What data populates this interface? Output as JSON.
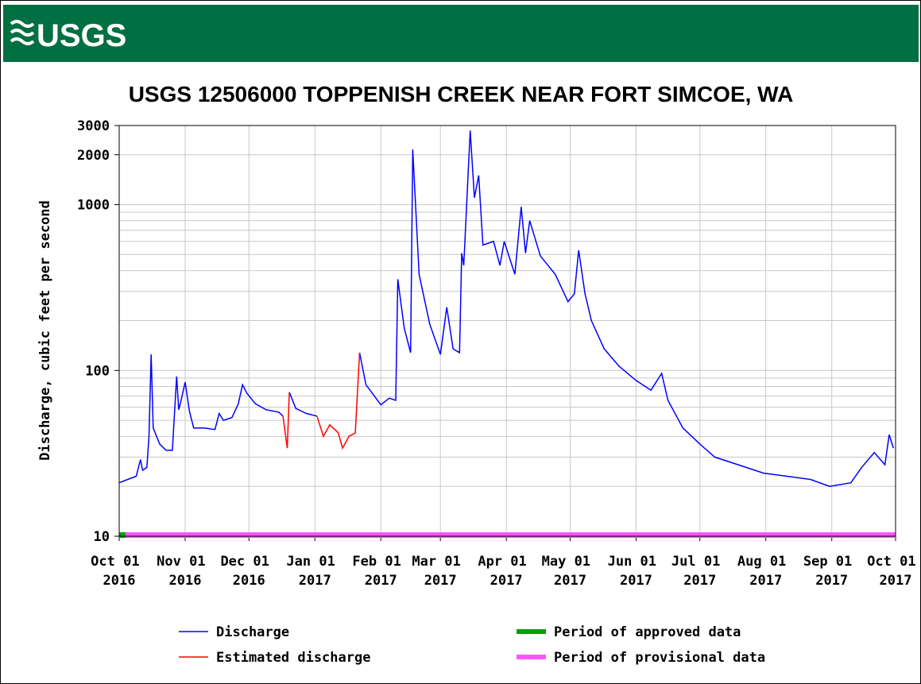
{
  "header": {
    "logo": "USGS"
  },
  "chart_data": {
    "type": "line",
    "title": "USGS 12506000 TOPPENISH CREEK NEAR FORT SIMCOE, WA",
    "y_label": "Discharge, cubic feet per second",
    "yscale": "log",
    "grid": true,
    "ylim": [
      10,
      3000
    ],
    "yticks": [
      10,
      100,
      1000,
      2000,
      3000
    ],
    "y_minor_ticks": [
      20,
      30,
      40,
      50,
      60,
      70,
      80,
      90,
      200,
      300,
      400,
      500,
      600,
      700,
      800,
      900
    ],
    "xlim": [
      "2016-10-01",
      "2017-10-01"
    ],
    "xticks": [
      {
        "value": "2016-10-01",
        "label": "Oct 01 2016"
      },
      {
        "value": "2016-11-01",
        "label": "Nov 01 2016"
      },
      {
        "value": "2016-12-01",
        "label": "Dec 01 2016"
      },
      {
        "value": "2017-01-01",
        "label": "Jan 01 2017"
      },
      {
        "value": "2017-02-01",
        "label": "Feb 01 2017"
      },
      {
        "value": "2017-03-01",
        "label": "Mar 01 2017"
      },
      {
        "value": "2017-04-01",
        "label": "Apr 01 2017"
      },
      {
        "value": "2017-05-01",
        "label": "May 01 2017"
      },
      {
        "value": "2017-06-01",
        "label": "Jun 01 2017"
      },
      {
        "value": "2017-07-01",
        "label": "Jul 01 2017"
      },
      {
        "value": "2017-08-01",
        "label": "Aug 01 2017"
      },
      {
        "value": "2017-09-01",
        "label": "Sep 01 2017"
      },
      {
        "value": "2017-10-01",
        "label": "Oct 01 2017"
      }
    ],
    "x": [
      "2016-10-01",
      "2016-10-05",
      "2016-10-09",
      "2016-10-11",
      "2016-10-12",
      "2016-10-14",
      "2016-10-15",
      "2016-10-16",
      "2016-10-17",
      "2016-10-20",
      "2016-10-23",
      "2016-10-26",
      "2016-10-28",
      "2016-10-29",
      "2016-10-30",
      "2016-11-01",
      "2016-11-03",
      "2016-11-05",
      "2016-11-10",
      "2016-11-15",
      "2016-11-17",
      "2016-11-19",
      "2016-11-23",
      "2016-11-26",
      "2016-11-28",
      "2016-11-30",
      "2016-12-04",
      "2016-12-09",
      "2016-12-15",
      "2016-12-17",
      "2016-12-19",
      "2016-12-20",
      "2016-12-23",
      "2016-12-28",
      "2017-01-02",
      "2017-01-05",
      "2017-01-08",
      "2017-01-12",
      "2017-01-14",
      "2017-01-17",
      "2017-01-20",
      "2017-01-22",
      "2017-01-25",
      "2017-01-29",
      "2017-02-01",
      "2017-02-05",
      "2017-02-08",
      "2017-02-09",
      "2017-02-12",
      "2017-02-15",
      "2017-02-16",
      "2017-02-17",
      "2017-02-19",
      "2017-02-24",
      "2017-03-01",
      "2017-03-04",
      "2017-03-07",
      "2017-03-10",
      "2017-03-11",
      "2017-03-12",
      "2017-03-15",
      "2017-03-17",
      "2017-03-19",
      "2017-03-21",
      "2017-03-26",
      "2017-03-29",
      "2017-03-31",
      "2017-04-05",
      "2017-04-08",
      "2017-04-10",
      "2017-04-12",
      "2017-04-17",
      "2017-04-24",
      "2017-04-30",
      "2017-05-03",
      "2017-05-05",
      "2017-05-08",
      "2017-05-11",
      "2017-05-17",
      "2017-05-24",
      "2017-06-01",
      "2017-06-08",
      "2017-06-13",
      "2017-06-16",
      "2017-06-23",
      "2017-07-01",
      "2017-07-08",
      "2017-07-19",
      "2017-07-31",
      "2017-08-11",
      "2017-08-22",
      "2017-08-31",
      "2017-09-10",
      "2017-09-15",
      "2017-09-21",
      "2017-09-26",
      "2017-09-28",
      "2017-09-30"
    ],
    "series": [
      {
        "name": "Discharge",
        "color": "#0000ff",
        "values": [
          21,
          22,
          23,
          29,
          25,
          26,
          40,
          125,
          45,
          36,
          33,
          33,
          92,
          58,
          65,
          85,
          57,
          45,
          45,
          44,
          55,
          50,
          52,
          63,
          82,
          73,
          63,
          58,
          56,
          53,
          null,
          74,
          59,
          55,
          53,
          null,
          null,
          null,
          null,
          null,
          null,
          128,
          82,
          70,
          62,
          68,
          66,
          355,
          180,
          128,
          2150,
          1200,
          380,
          190,
          125,
          240,
          135,
          128,
          510,
          430,
          2800,
          1100,
          1500,
          570,
          600,
          430,
          600,
          380,
          970,
          510,
          800,
          490,
          380,
          260,
          290,
          530,
          290,
          200,
          135,
          106,
          87,
          76,
          96,
          66,
          45,
          36,
          30,
          27,
          24,
          23,
          22,
          20,
          21,
          26,
          32,
          27,
          41,
          34
        ]
      },
      {
        "name": "Estimated discharge",
        "color": "#ff0000",
        "values": [
          null,
          null,
          null,
          null,
          null,
          null,
          null,
          null,
          null,
          null,
          null,
          null,
          null,
          null,
          null,
          null,
          null,
          null,
          null,
          null,
          null,
          null,
          null,
          null,
          null,
          null,
          null,
          null,
          null,
          53,
          34,
          74,
          null,
          null,
          53,
          40,
          47,
          42,
          34,
          40,
          42,
          128,
          null,
          null,
          null,
          null,
          null,
          null,
          null,
          null,
          null,
          null,
          null,
          null,
          null,
          null,
          null,
          null,
          null,
          null,
          null,
          null,
          null,
          null,
          null,
          null,
          null,
          null,
          null,
          null,
          null,
          null,
          null,
          null,
          null,
          null,
          null,
          null,
          null,
          null,
          null,
          null,
          null,
          null,
          null,
          null,
          null,
          null,
          null,
          null,
          null,
          null,
          null,
          null,
          null,
          null,
          null,
          null
        ]
      }
    ],
    "periods": [
      {
        "name": "Period of approved data",
        "color": "#00a000",
        "start": "2016-10-01",
        "end": "2016-10-04"
      },
      {
        "name": "Period of provisional data",
        "color": "#ff55ff",
        "start": "2016-10-04",
        "end": "2017-10-01"
      }
    ]
  }
}
